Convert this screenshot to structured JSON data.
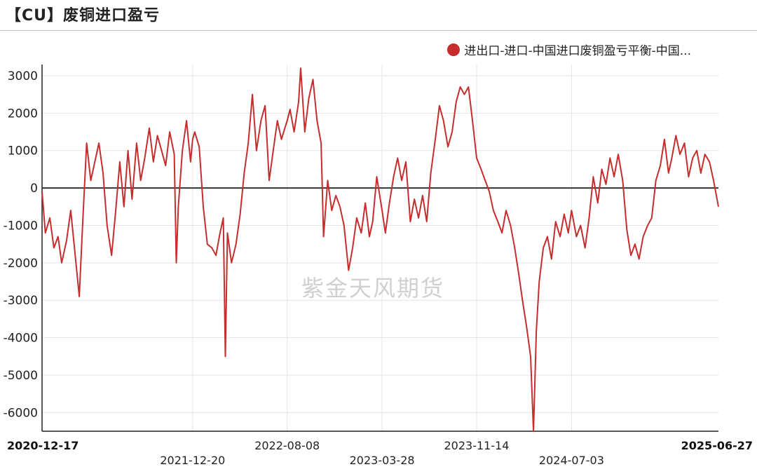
{
  "title": "【CU】废铜进口盈亏",
  "watermark": "紫金天风期货",
  "colors": {
    "series": "#c62d2d",
    "grid": "#e3e3e3",
    "zero_line": "#333333",
    "axis": "#222222"
  },
  "chart_data": {
    "type": "line",
    "legend_position": "top-right",
    "grid": true,
    "ylim": [
      -6500,
      3300
    ],
    "yticks": [
      3000,
      2000,
      1000,
      0,
      -1000,
      -2000,
      -3000,
      -4000,
      -5000,
      -6000
    ],
    "xticks": [
      {
        "label": "2020-12-17",
        "bold": true,
        "row": 1
      },
      {
        "label": "2021-12-20",
        "bold": false,
        "row": 2
      },
      {
        "label": "2022-08-08",
        "bold": false,
        "row": 1
      },
      {
        "label": "2023-03-28",
        "bold": false,
        "row": 2
      },
      {
        "label": "2023-11-14",
        "bold": false,
        "row": 1
      },
      {
        "label": "2024-07-03",
        "bold": false,
        "row": 2
      },
      {
        "label": "2025-06-27",
        "bold": true,
        "row": 1
      }
    ],
    "series": [
      {
        "name": "进出口-进口-中国进口废铜盈亏平衡-中国...",
        "points": [
          [
            "2020-12-17",
            -100
          ],
          [
            "2020-12-25",
            -1200
          ],
          [
            "2021-01-05",
            -800
          ],
          [
            "2021-01-15",
            -1600
          ],
          [
            "2021-01-25",
            -1300
          ],
          [
            "2021-02-03",
            -2000
          ],
          [
            "2021-02-15",
            -1400
          ],
          [
            "2021-02-25",
            -600
          ],
          [
            "2021-03-08",
            -1800
          ],
          [
            "2021-03-18",
            -2900
          ],
          [
            "2021-03-26",
            -1000
          ],
          [
            "2021-04-05",
            1200
          ],
          [
            "2021-04-15",
            200
          ],
          [
            "2021-04-25",
            700
          ],
          [
            "2021-05-05",
            1200
          ],
          [
            "2021-05-15",
            400
          ],
          [
            "2021-05-25",
            -1000
          ],
          [
            "2021-06-05",
            -1800
          ],
          [
            "2021-06-15",
            -600
          ],
          [
            "2021-06-25",
            700
          ],
          [
            "2021-07-05",
            -500
          ],
          [
            "2021-07-15",
            1000
          ],
          [
            "2021-07-25",
            -300
          ],
          [
            "2021-08-05",
            1200
          ],
          [
            "2021-08-15",
            200
          ],
          [
            "2021-08-25",
            800
          ],
          [
            "2021-09-05",
            1600
          ],
          [
            "2021-09-15",
            700
          ],
          [
            "2021-09-25",
            1400
          ],
          [
            "2021-10-05",
            1000
          ],
          [
            "2021-10-15",
            600
          ],
          [
            "2021-10-25",
            1500
          ],
          [
            "2021-11-05",
            900
          ],
          [
            "2021-11-10",
            -2000
          ],
          [
            "2021-11-15",
            -500
          ],
          [
            "2021-11-25",
            1000
          ],
          [
            "2021-12-05",
            1800
          ],
          [
            "2021-12-15",
            700
          ],
          [
            "2021-12-20",
            1300
          ],
          [
            "2021-12-25",
            1500
          ],
          [
            "2022-01-05",
            1100
          ],
          [
            "2022-01-15",
            -500
          ],
          [
            "2022-01-25",
            -1500
          ],
          [
            "2022-02-05",
            -1600
          ],
          [
            "2022-02-15",
            -1800
          ],
          [
            "2022-02-25",
            -1200
          ],
          [
            "2022-03-05",
            -800
          ],
          [
            "2022-03-10",
            -4500
          ],
          [
            "2022-03-15",
            -1200
          ],
          [
            "2022-03-25",
            -2000
          ],
          [
            "2022-04-05",
            -1500
          ],
          [
            "2022-04-15",
            -700
          ],
          [
            "2022-04-25",
            400
          ],
          [
            "2022-05-05",
            1200
          ],
          [
            "2022-05-15",
            2500
          ],
          [
            "2022-05-25",
            1000
          ],
          [
            "2022-06-05",
            1800
          ],
          [
            "2022-06-15",
            2200
          ],
          [
            "2022-06-25",
            200
          ],
          [
            "2022-07-05",
            1000
          ],
          [
            "2022-07-15",
            1800
          ],
          [
            "2022-07-25",
            1300
          ],
          [
            "2022-08-08",
            1800
          ],
          [
            "2022-08-15",
            2100
          ],
          [
            "2022-08-25",
            1500
          ],
          [
            "2022-09-05",
            2300
          ],
          [
            "2022-09-10",
            3200
          ],
          [
            "2022-09-20",
            1500
          ],
          [
            "2022-09-30",
            2400
          ],
          [
            "2022-10-10",
            2900
          ],
          [
            "2022-10-20",
            1800
          ],
          [
            "2022-10-30",
            1200
          ],
          [
            "2022-11-05",
            -1300
          ],
          [
            "2022-11-15",
            200
          ],
          [
            "2022-11-25",
            -600
          ],
          [
            "2022-12-05",
            -200
          ],
          [
            "2022-12-15",
            -500
          ],
          [
            "2022-12-25",
            -1000
          ],
          [
            "2023-01-05",
            -2200
          ],
          [
            "2023-01-15",
            -1600
          ],
          [
            "2023-01-25",
            -800
          ],
          [
            "2023-02-05",
            -1200
          ],
          [
            "2023-02-15",
            -400
          ],
          [
            "2023-02-25",
            -1300
          ],
          [
            "2023-03-05",
            -900
          ],
          [
            "2023-03-15",
            300
          ],
          [
            "2023-03-28",
            -600
          ],
          [
            "2023-04-05",
            -1200
          ],
          [
            "2023-04-15",
            -400
          ],
          [
            "2023-04-25",
            300
          ],
          [
            "2023-05-05",
            800
          ],
          [
            "2023-05-15",
            200
          ],
          [
            "2023-05-25",
            700
          ],
          [
            "2023-06-05",
            -900
          ],
          [
            "2023-06-15",
            -300
          ],
          [
            "2023-06-25",
            -800
          ],
          [
            "2023-07-05",
            -200
          ],
          [
            "2023-07-15",
            -900
          ],
          [
            "2023-07-25",
            400
          ],
          [
            "2023-08-05",
            1300
          ],
          [
            "2023-08-15",
            2200
          ],
          [
            "2023-08-25",
            1800
          ],
          [
            "2023-09-05",
            1100
          ],
          [
            "2023-09-15",
            1500
          ],
          [
            "2023-09-25",
            2300
          ],
          [
            "2023-10-05",
            2700
          ],
          [
            "2023-10-15",
            2500
          ],
          [
            "2023-10-25",
            2700
          ],
          [
            "2023-11-05",
            1700
          ],
          [
            "2023-11-14",
            800
          ],
          [
            "2023-11-25",
            500
          ],
          [
            "2023-12-05",
            200
          ],
          [
            "2023-12-15",
            -100
          ],
          [
            "2023-12-25",
            -600
          ],
          [
            "2024-01-05",
            -900
          ],
          [
            "2024-01-15",
            -1200
          ],
          [
            "2024-01-25",
            -600
          ],
          [
            "2024-02-05",
            -1000
          ],
          [
            "2024-02-15",
            -1600
          ],
          [
            "2024-02-25",
            -2300
          ],
          [
            "2024-03-05",
            -3000
          ],
          [
            "2024-03-15",
            -3700
          ],
          [
            "2024-03-25",
            -4500
          ],
          [
            "2024-04-01",
            -6500
          ],
          [
            "2024-04-08",
            -3800
          ],
          [
            "2024-04-15",
            -2500
          ],
          [
            "2024-04-25",
            -1600
          ],
          [
            "2024-05-05",
            -1300
          ],
          [
            "2024-05-15",
            -1900
          ],
          [
            "2024-05-25",
            -900
          ],
          [
            "2024-06-05",
            -1300
          ],
          [
            "2024-06-15",
            -700
          ],
          [
            "2024-06-25",
            -1200
          ],
          [
            "2024-07-03",
            -600
          ],
          [
            "2024-07-15",
            -1300
          ],
          [
            "2024-07-25",
            -1000
          ],
          [
            "2024-08-05",
            -1600
          ],
          [
            "2024-08-15",
            -800
          ],
          [
            "2024-08-25",
            300
          ],
          [
            "2024-09-05",
            -400
          ],
          [
            "2024-09-15",
            500
          ],
          [
            "2024-09-25",
            100
          ],
          [
            "2024-10-05",
            800
          ],
          [
            "2024-10-15",
            300
          ],
          [
            "2024-10-25",
            900
          ],
          [
            "2024-11-05",
            200
          ],
          [
            "2024-11-15",
            -1100
          ],
          [
            "2024-11-25",
            -1800
          ],
          [
            "2024-12-05",
            -1500
          ],
          [
            "2024-12-15",
            -1900
          ],
          [
            "2024-12-25",
            -1300
          ],
          [
            "2025-01-05",
            -1000
          ],
          [
            "2025-01-15",
            -800
          ],
          [
            "2025-01-25",
            200
          ],
          [
            "2025-02-05",
            600
          ],
          [
            "2025-02-15",
            1300
          ],
          [
            "2025-02-25",
            400
          ],
          [
            "2025-03-05",
            800
          ],
          [
            "2025-03-15",
            1400
          ],
          [
            "2025-03-25",
            900
          ],
          [
            "2025-04-05",
            1200
          ],
          [
            "2025-04-15",
            300
          ],
          [
            "2025-04-25",
            800
          ],
          [
            "2025-05-05",
            1000
          ],
          [
            "2025-05-15",
            400
          ],
          [
            "2025-05-25",
            900
          ],
          [
            "2025-06-05",
            700
          ],
          [
            "2025-06-15",
            200
          ],
          [
            "2025-06-27",
            -500
          ]
        ]
      }
    ]
  }
}
